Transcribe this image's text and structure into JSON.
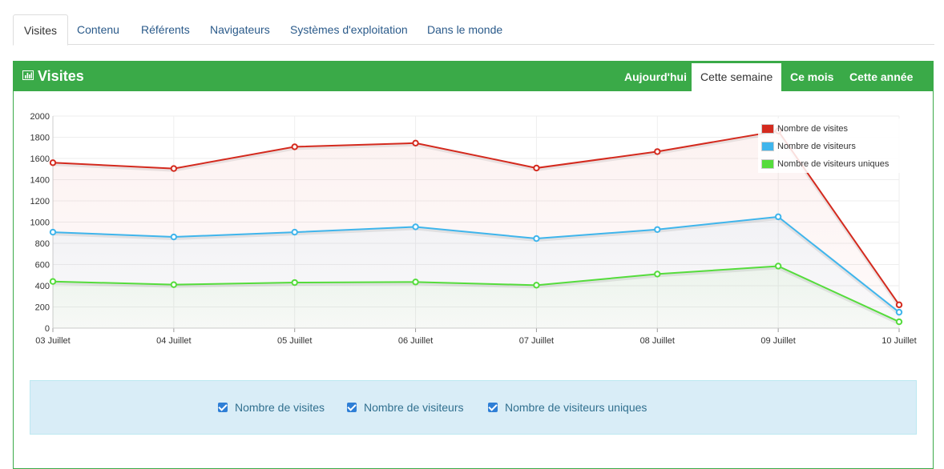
{
  "tabs": [
    {
      "label": "Visites",
      "active": true
    },
    {
      "label": "Contenu",
      "active": false
    },
    {
      "label": "Référents",
      "active": false
    },
    {
      "label": "Navigateurs",
      "active": false
    },
    {
      "label": "Systèmes d'exploitation",
      "active": false
    },
    {
      "label": "Dans le monde",
      "active": false
    }
  ],
  "panel": {
    "title": "Visites",
    "title_icon": "bar-chart-icon",
    "accent_color": "#3aaa48",
    "periods": [
      {
        "label": "Aujourd'hui",
        "active": false
      },
      {
        "label": "Cette semaine",
        "active": true
      },
      {
        "label": "Ce mois",
        "active": false
      },
      {
        "label": "Cette année",
        "active": false
      }
    ]
  },
  "chart_data": {
    "type": "line",
    "categories": [
      "03 Juillet",
      "04 Juillet",
      "05 Juillet",
      "06 Juillet",
      "07 Juillet",
      "08 Juillet",
      "09 Juillet",
      "10 Juillet"
    ],
    "series": [
      {
        "name": "Nombre de visites",
        "color": "#d42a1e",
        "values": [
          1560,
          1505,
          1710,
          1745,
          1510,
          1665,
          1860,
          220
        ]
      },
      {
        "name": "Nombre de visiteurs",
        "color": "#3fb5ec",
        "values": [
          905,
          860,
          905,
          955,
          845,
          930,
          1050,
          150
        ]
      },
      {
        "name": "Nombre de visiteurs uniques",
        "color": "#55dc3c",
        "values": [
          440,
          410,
          430,
          435,
          405,
          510,
          585,
          60
        ]
      }
    ],
    "ylim": [
      0,
      2000
    ],
    "yticks": [
      0,
      200,
      400,
      600,
      800,
      1000,
      1200,
      1400,
      1600,
      1800,
      2000
    ],
    "grid": true,
    "legend": "top-right"
  },
  "filters": [
    {
      "label": "Nombre de visites",
      "checked": true
    },
    {
      "label": "Nombre de visiteurs",
      "checked": true
    },
    {
      "label": "Nombre de visiteurs uniques",
      "checked": true
    }
  ]
}
